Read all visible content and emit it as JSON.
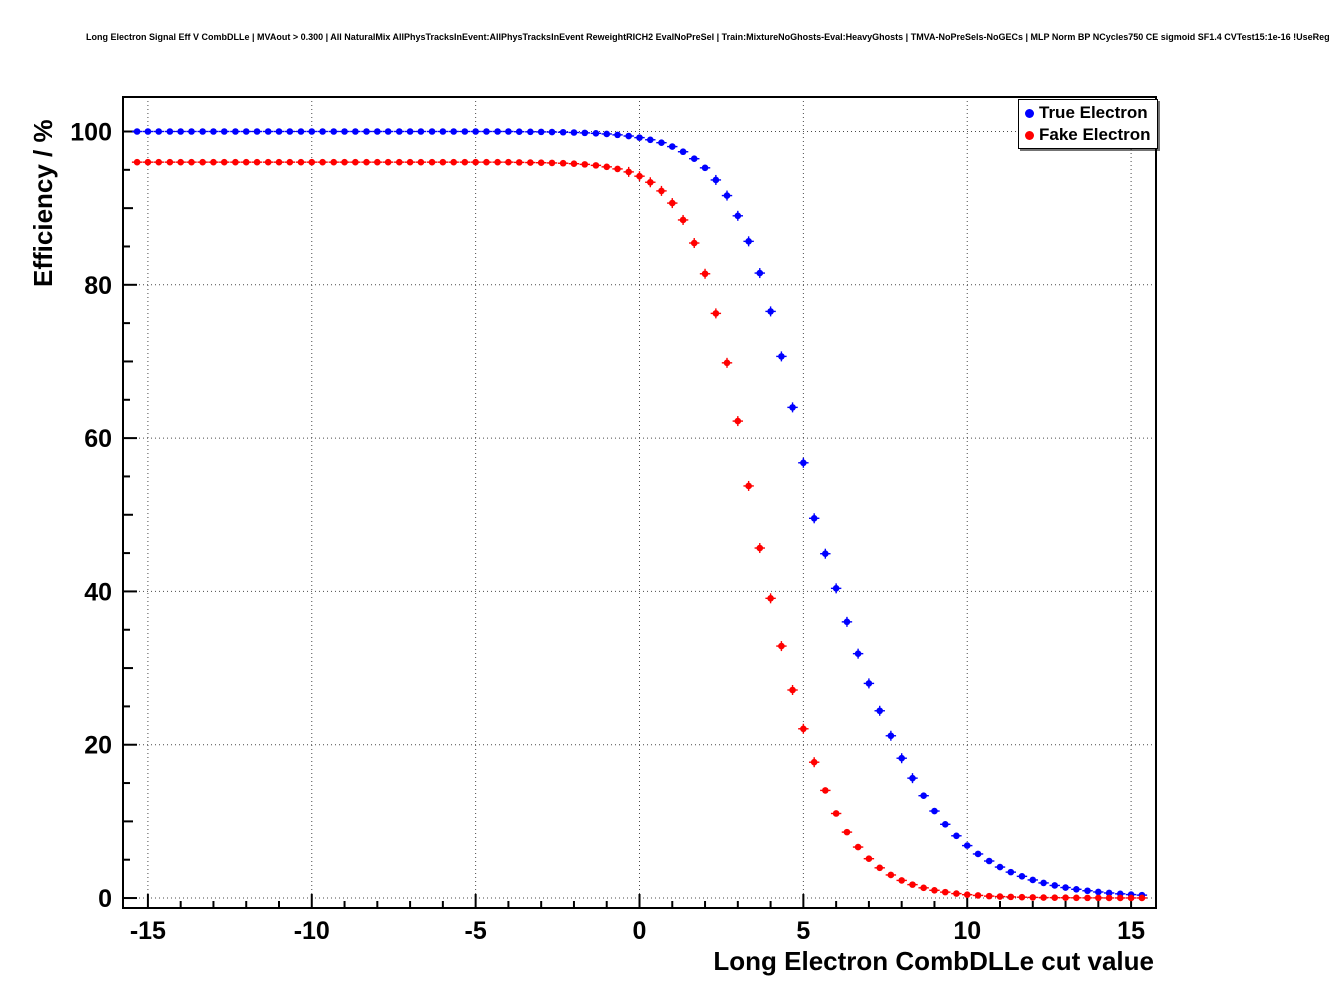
{
  "title": "Long Electron Signal Eff V CombDLLe | MVAout > 0.300 | All NaturalMix AllPhysTracksInEvent:AllPhysTracksInEvent ReweightRICH2 EvalNoPreSel | Train:MixtureNoGhosts-Eval:HeavyGhosts | TMVA-NoPreSels-NoGECs | MLP Norm BP NCycles750 CE sigmoid SF1.4 CVTest15:1e-16 !UseReg",
  "chart_data": {
    "type": "scatter",
    "title": "Long Electron Signal Eff V CombDLLe | MVAout > 0.300 | All NaturalMix AllPhysTracksInEvent:AllPhysTracksInEvent ReweightRICH2 EvalNoPreSel | Train:MixtureNoGhosts-Eval:HeavyGhosts | TMVA-NoPreSels-NoGECs | MLP Norm BP NCycles750 CE sigmoid SF1.4 CVTest15:1e-16 !UseReg",
    "xlabel": "Long Electron CombDLLe cut value",
    "ylabel": "Efficiency / %",
    "xlim": [
      -15.76,
      15.76
    ],
    "ylim": [
      -1.3,
      104.5
    ],
    "xticks": [
      -15,
      -10,
      -5,
      0,
      5,
      10,
      15
    ],
    "yticks": [
      0,
      20,
      40,
      60,
      80,
      100
    ],
    "x_minor_step": 1,
    "y_minor_step": 5,
    "grid": "dotted",
    "legend_position": "top-right",
    "marker": "filled-circle",
    "x": [
      -15.33,
      -15,
      -14.67,
      -14.33,
      -14,
      -13.67,
      -13.33,
      -13,
      -12.67,
      -12.33,
      -12,
      -11.67,
      -11.33,
      -11,
      -10.67,
      -10.33,
      -10,
      -9.67,
      -9.33,
      -9,
      -8.67,
      -8.33,
      -8,
      -7.67,
      -7.33,
      -7,
      -6.67,
      -6.33,
      -6,
      -5.67,
      -5.33,
      -5,
      -4.67,
      -4.33,
      -4,
      -3.67,
      -3.33,
      -3,
      -2.67,
      -2.33,
      -2,
      -1.67,
      -1.33,
      -1,
      -0.67,
      -0.33,
      0,
      0.33,
      0.67,
      1,
      1.33,
      1.67,
      2,
      2.33,
      2.67,
      3,
      3.33,
      3.67,
      4,
      4.33,
      4.67,
      5,
      5.33,
      5.67,
      6,
      6.33,
      6.67,
      7,
      7.33,
      7.67,
      8,
      8.33,
      8.67,
      9,
      9.33,
      9.67,
      10,
      10.33,
      10.67,
      11,
      11.33,
      11.67,
      12,
      12.33,
      12.67,
      13,
      13.33,
      13.67,
      14,
      14.33,
      14.67,
      15,
      15.33
    ],
    "series": [
      {
        "name": "True Electron",
        "color": "#0000ff",
        "values": [
          100,
          100,
          100,
          100,
          100,
          100,
          100,
          100,
          100,
          100,
          100,
          100,
          100,
          100,
          100,
          100,
          100,
          100,
          100,
          100,
          100,
          100,
          100,
          100,
          100,
          100,
          100,
          100,
          100,
          100,
          100,
          100,
          100,
          100,
          100,
          99.97,
          99.96,
          99.95,
          99.93,
          99.9,
          99.87,
          99.82,
          99.76,
          99.68,
          99.56,
          99.41,
          99.2,
          98.92,
          98.54,
          98.03,
          97.36,
          96.45,
          95.26,
          93.68,
          91.64,
          89.0,
          85.67,
          81.53,
          76.53,
          70.66,
          64.01,
          56.78,
          49.54,
          44.92,
          40.4,
          36.03,
          31.88,
          28.0,
          24.43,
          21.17,
          18.24,
          15.64,
          13.35,
          11.35,
          9.62,
          8.12,
          6.84,
          5.75,
          4.83,
          4.04,
          3.38,
          2.83,
          2.36,
          1.97,
          1.64,
          1.37,
          1.14,
          0.95,
          0.79,
          0.66,
          0.55,
          0.45,
          0.38
        ]
      },
      {
        "name": "Fake Electron",
        "color": "#ff0000",
        "values": [
          96,
          96,
          96,
          96,
          96,
          96,
          96,
          96,
          96,
          96,
          96,
          96,
          96,
          96,
          96,
          96,
          96,
          96,
          96,
          96,
          96,
          96,
          96,
          96,
          96,
          96,
          96,
          96,
          96,
          96,
          96,
          96,
          96,
          96,
          96,
          95.97,
          95.95,
          95.93,
          95.9,
          95.86,
          95.8,
          95.71,
          95.58,
          95.39,
          95.12,
          94.73,
          94.17,
          93.38,
          92.25,
          90.66,
          88.46,
          85.45,
          81.44,
          76.27,
          69.82,
          62.22,
          53.76,
          45.66,
          39.1,
          32.87,
          27.14,
          22.08,
          17.72,
          14.04,
          11.03,
          8.6,
          6.65,
          5.13,
          3.94,
          3.01,
          2.3,
          1.75,
          1.33,
          1.01,
          0.77,
          0.58,
          0.44,
          0.34,
          0.25,
          0.19,
          0.15,
          0.11,
          0.08,
          0.06,
          0.05,
          0.04,
          0.03,
          0.02,
          0.02,
          0.01,
          0.01,
          0.01,
          0.01
        ]
      }
    ]
  }
}
